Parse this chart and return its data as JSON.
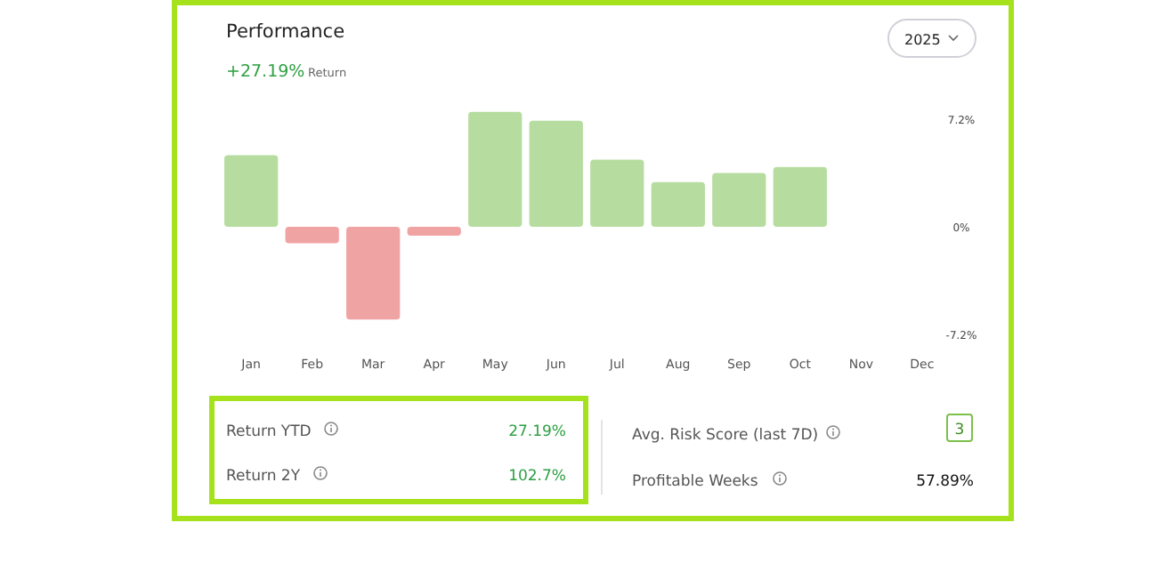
{
  "chart_data": {
    "type": "bar",
    "title": "Performance",
    "categories": [
      "Jan",
      "Feb",
      "Mar",
      "Apr",
      "May",
      "Jun",
      "Jul",
      "Aug",
      "Sep",
      "Oct",
      "Nov",
      "Dec"
    ],
    "values": [
      4.8,
      -1.1,
      -6.2,
      -0.6,
      7.7,
      7.1,
      4.5,
      3.0,
      3.6,
      4.0,
      null,
      null
    ],
    "colors": [
      "#b6dd9f",
      "#f0a3a3",
      "#f0a3a3",
      "#f0a3a3",
      "#b6dd9f",
      "#b6dd9f",
      "#b6dd9f",
      "#b6dd9f",
      "#b6dd9f",
      "#b6dd9f",
      null,
      null
    ],
    "ylim": [
      -7.2,
      7.8
    ],
    "yticks": [
      {
        "value": 7.2,
        "label": "7.2%"
      },
      {
        "value": 0,
        "label": "0%"
      },
      {
        "value": -7.2,
        "label": "-7.2%"
      }
    ],
    "grid": false,
    "annotations": [
      "+27.19%",
      "Return",
      "2025",
      "Return YTD",
      "27.19%",
      "Return 2Y",
      "102.7%",
      "Avg. Risk Score (last 7D)",
      "3",
      "Profitable Weeks",
      "57.89%"
    ]
  }
}
